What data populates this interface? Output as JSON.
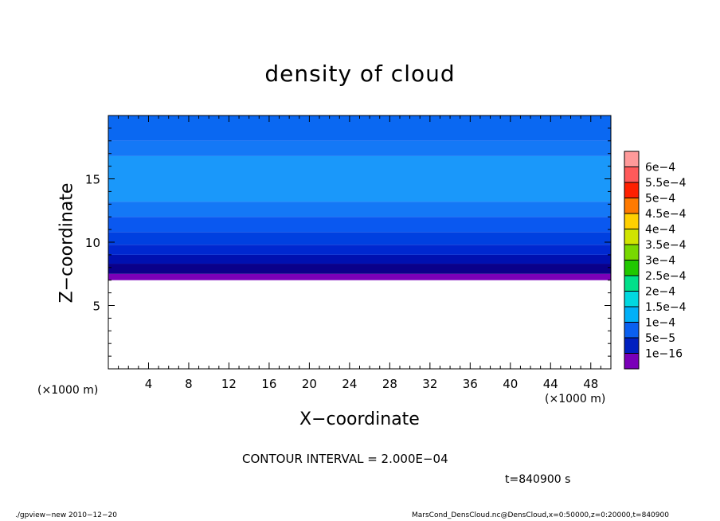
{
  "chart_data": {
    "type": "heatmap",
    "title": "density of cloud",
    "xlabel": "X−coordinate",
    "ylabel": "Z−coordinate",
    "x_unit_left": "(×1000 m)",
    "x_unit_right": "(×1000 m)",
    "xlim": [
      0,
      50
    ],
    "ylim": [
      0,
      20
    ],
    "x_ticks": [
      4,
      8,
      12,
      16,
      20,
      24,
      28,
      32,
      36,
      40,
      44,
      48
    ],
    "y_ticks": [
      5,
      10,
      15
    ],
    "colorbar": {
      "labels": [
        "6e−4",
        "5.5e−4",
        "5e−4",
        "4.5e−4",
        "4e−4",
        "3.5e−4",
        "3e−4",
        "2.5e−4",
        "2e−4",
        "1.5e−4",
        "1e−4",
        "5e−5",
        "1e−16"
      ],
      "colors": [
        "#ff9a9a",
        "#ff5a5a",
        "#ff2000",
        "#ff7a00",
        "#ffd000",
        "#d0e400",
        "#78d800",
        "#20c800",
        "#00e08a",
        "#00d8e0",
        "#00b0f8",
        "#0a60f0",
        "#0020c0",
        "#7a00b8"
      ]
    },
    "bands": [
      {
        "z_bottom": 7.0,
        "z_top": 7.5,
        "color": "#7a00b8"
      },
      {
        "z_bottom": 7.5,
        "z_top": 8.3,
        "color": "#0a008a"
      },
      {
        "z_bottom": 8.3,
        "z_top": 9.0,
        "color": "#0010b0"
      },
      {
        "z_bottom": 9.0,
        "z_top": 9.8,
        "color": "#0028d0"
      },
      {
        "z_bottom": 9.8,
        "z_top": 10.8,
        "color": "#0040e0"
      },
      {
        "z_bottom": 10.8,
        "z_top": 12.0,
        "color": "#0a58f0"
      },
      {
        "z_bottom": 12.0,
        "z_top": 13.2,
        "color": "#1478f6"
      },
      {
        "z_bottom": 13.2,
        "z_top": 16.8,
        "color": "#1a98fa"
      },
      {
        "z_bottom": 16.8,
        "z_top": 18.0,
        "color": "#1478f6"
      },
      {
        "z_bottom": 18.0,
        "z_top": 20.0,
        "color": "#0a68f2"
      }
    ]
  },
  "annotations": {
    "contour_interval": "CONTOUR INTERVAL = 2.000E−04",
    "time": "t=840900 s",
    "footer_left": "./gpview−new   2010−12−20",
    "footer_right": "MarsCond_DensCloud.nc@DensCloud,x=0:50000,z=0:20000,t=840900"
  }
}
